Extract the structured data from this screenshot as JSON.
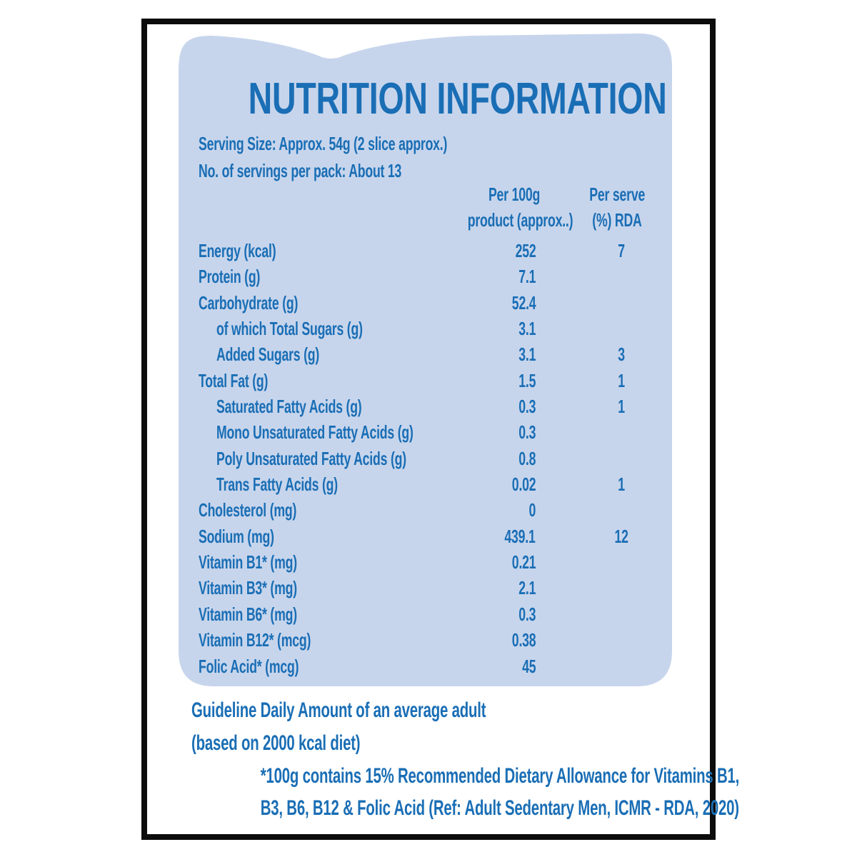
{
  "colors": {
    "text_blue": "#1a6eb5",
    "panel_bg": "#c7d5ec",
    "frame_black": "#0c0c0c",
    "page_bg": "#ffffff"
  },
  "panel": {
    "title": "NUTRITION INFORMATION",
    "serving_size": "Serving Size: Approx. 54g (2 slice approx.)",
    "servings_per_pack": "No. of servings per pack: About 13",
    "columns": {
      "per_100g": [
        "Per 100g",
        "product (approx..)"
      ],
      "per_serve": [
        "Per serve",
        "(%) RDA"
      ]
    },
    "rows": [
      {
        "label": "Energy (kcal)",
        "indent": false,
        "per100g": "252",
        "rda": "7"
      },
      {
        "label": "Protein (g)",
        "indent": false,
        "per100g": "7.1",
        "rda": ""
      },
      {
        "label": "Carbohydrate (g)",
        "indent": false,
        "per100g": "52.4",
        "rda": ""
      },
      {
        "label": "of which Total Sugars (g)",
        "indent": true,
        "per100g": "3.1",
        "rda": ""
      },
      {
        "label": "Added Sugars (g)",
        "indent": true,
        "per100g": "3.1",
        "rda": "3"
      },
      {
        "label": "Total Fat (g)",
        "indent": false,
        "per100g": "1.5",
        "rda": "1"
      },
      {
        "label": "Saturated Fatty Acids (g)",
        "indent": true,
        "per100g": "0.3",
        "rda": "1"
      },
      {
        "label": "Mono Unsaturated Fatty Acids (g)",
        "indent": true,
        "per100g": "0.3",
        "rda": ""
      },
      {
        "label": "Poly Unsaturated Fatty Acids (g)",
        "indent": true,
        "per100g": "0.8",
        "rda": ""
      },
      {
        "label": "Trans Fatty Acids (g)",
        "indent": true,
        "per100g": "0.02",
        "rda": "1"
      },
      {
        "label": "Cholesterol (mg)",
        "indent": false,
        "per100g": "0",
        "rda": ""
      },
      {
        "label": "Sodium (mg)",
        "indent": false,
        "per100g": "439.1",
        "rda": "12"
      },
      {
        "label": "Vitamin B1* (mg)",
        "indent": false,
        "per100g": "0.21",
        "rda": ""
      },
      {
        "label": "Vitamin B3* (mg)",
        "indent": false,
        "per100g": "2.1",
        "rda": ""
      },
      {
        "label": "Vitamin B6* (mg)",
        "indent": false,
        "per100g": "0.3",
        "rda": ""
      },
      {
        "label": "Vitamin B12* (mcg)",
        "indent": false,
        "per100g": "0.38",
        "rda": ""
      },
      {
        "label": "Folic Acid* (mcg)",
        "indent": false,
        "per100g": "45",
        "rda": ""
      }
    ]
  },
  "footer": {
    "guideline_line1": "Guideline Daily Amount of an average adult",
    "guideline_line2": "(based on 2000 kcal diet)",
    "footnote_line1": "*100g contains 15% Recommended Dietary Allowance for Vitamins B1,",
    "footnote_line2": "B3, B6, B12 & Folic Acid (Ref: Adult Sedentary Men, ICMR - RDA, 2020)"
  }
}
